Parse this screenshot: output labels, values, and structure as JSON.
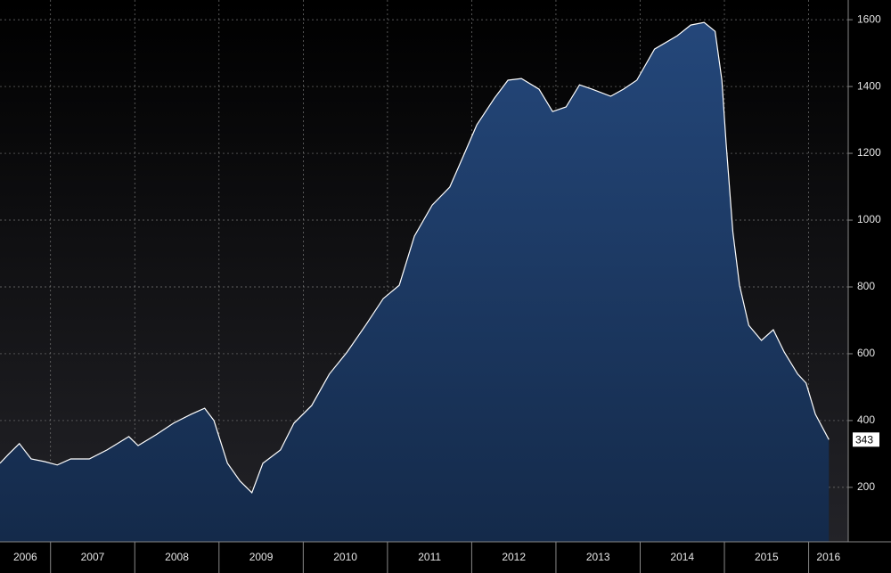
{
  "chart_data": {
    "type": "area",
    "x": [
      2006.4,
      2006.5,
      2006.63,
      2006.77,
      2006.93,
      2007.08,
      2007.24,
      2007.46,
      2007.67,
      2007.93,
      2008.04,
      2008.25,
      2008.46,
      2008.67,
      2008.83,
      2008.94,
      2009.1,
      2009.25,
      2009.39,
      2009.52,
      2009.73,
      2009.89,
      2010.1,
      2010.31,
      2010.52,
      2010.74,
      2010.95,
      2011.14,
      2011.32,
      2011.53,
      2011.74,
      2011.9,
      2012.06,
      2012.27,
      2012.43,
      2012.59,
      2012.8,
      2012.96,
      2013.12,
      2013.28,
      2013.43,
      2013.65,
      2013.8,
      2013.96,
      2014.17,
      2014.44,
      2014.6,
      2014.76,
      2014.89,
      2014.97,
      2015.02,
      2015.1,
      2015.18,
      2015.29,
      2015.44,
      2015.58,
      2015.71,
      2015.87,
      2015.97,
      2016.08,
      2016.24
    ],
    "values": [
      272,
      299,
      331,
      285,
      277,
      267,
      285,
      285,
      312,
      352,
      325,
      357,
      392,
      419,
      437,
      400,
      272,
      219,
      184,
      272,
      312,
      392,
      445,
      539,
      605,
      685,
      765,
      805,
      952,
      1045,
      1099,
      1192,
      1285,
      1365,
      1419,
      1424,
      1392,
      1325,
      1339,
      1405,
      1392,
      1371,
      1392,
      1419,
      1512,
      1552,
      1584,
      1592,
      1565,
      1419,
      1232,
      965,
      805,
      685,
      640,
      672,
      605,
      539,
      512,
      419,
      343
    ],
    "color": "#1f3d66",
    "line_color": "#ffffff",
    "xlim": [
      2006.4,
      2016.47
    ],
    "xticks": [
      2006,
      2007,
      2008,
      2009,
      2010,
      2011,
      2012,
      2013,
      2014,
      2015,
      2016
    ],
    "ylim": [
      37,
      1659
    ],
    "yticks": [
      200,
      400,
      600,
      800,
      1000,
      1200,
      1400,
      1600
    ],
    "grid": true
  }
}
